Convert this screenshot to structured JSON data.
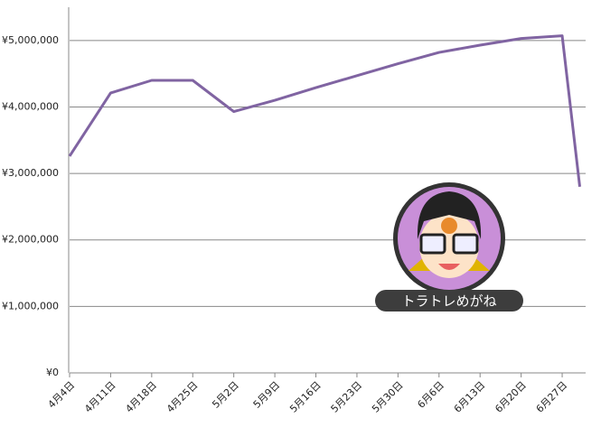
{
  "chart_data": {
    "type": "line",
    "x": [
      0,
      7,
      14,
      21,
      28,
      35,
      42,
      49,
      56,
      63,
      70,
      77,
      84,
      87
    ],
    "series": [
      {
        "name": null,
        "color": "#8064a2",
        "values": [
          3260000,
          4210000,
          4400000,
          4400000,
          3930000,
          4100000,
          4290000,
          4470000,
          4650000,
          4820000,
          4930000,
          5030000,
          5070000,
          2800000
        ]
      }
    ],
    "xlim": [
      0,
      88
    ],
    "xticks": [
      {
        "value": 0,
        "label": "4月4日"
      },
      {
        "value": 7,
        "label": "4月11日"
      },
      {
        "value": 14,
        "label": "4月18日"
      },
      {
        "value": 21,
        "label": "4月25日"
      },
      {
        "value": 28,
        "label": "5月2日"
      },
      {
        "value": 35,
        "label": "5月9日"
      },
      {
        "value": 42,
        "label": "5月16日"
      },
      {
        "value": 49,
        "label": "5月23日"
      },
      {
        "value": 56,
        "label": "5月30日"
      },
      {
        "value": 63,
        "label": "6月6日"
      },
      {
        "value": 70,
        "label": "6月13日"
      },
      {
        "value": 77,
        "label": "6月20日"
      },
      {
        "value": 84,
        "label": "6月27日"
      }
    ],
    "ylim": [
      0,
      5500000
    ],
    "yticks": [
      {
        "value": 0,
        "label": "¥0"
      },
      {
        "value": 1000000,
        "label": "¥1,000,000"
      },
      {
        "value": 2000000,
        "label": "¥2,000,000"
      },
      {
        "value": 3000000,
        "label": "¥3,000,000"
      },
      {
        "value": 4000000,
        "label": "¥4,000,000"
      },
      {
        "value": 5000000,
        "label": "¥5,000,000"
      }
    ],
    "grid": true,
    "watermark": "トラトレめがね"
  }
}
